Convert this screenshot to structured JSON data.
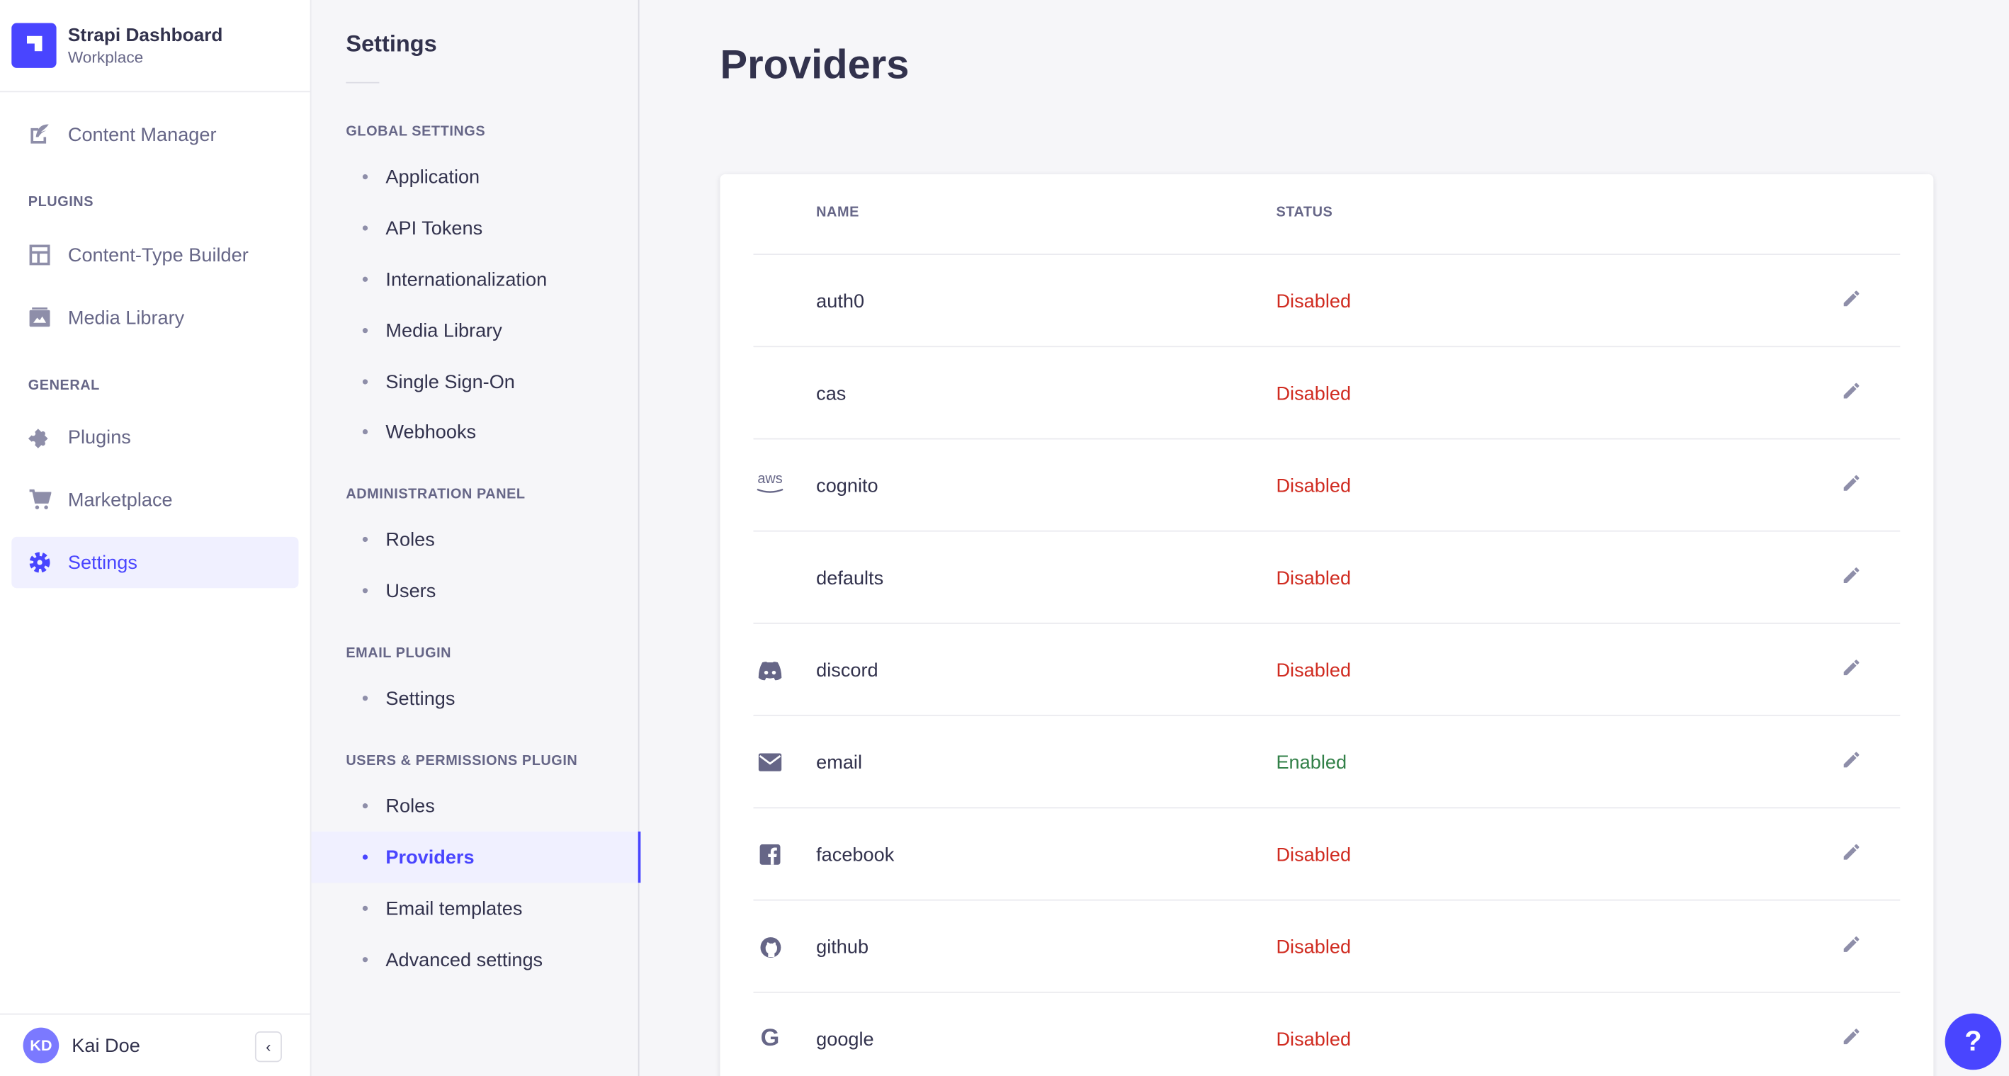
{
  "brand": {
    "title": "Strapi Dashboard",
    "subtitle": "Workplace"
  },
  "nav": {
    "content_manager": "Content Manager",
    "plugins_heading": "PLUGINS",
    "ctb": "Content-Type Builder",
    "media": "Media Library",
    "general_heading": "GENERAL",
    "plugins": "Plugins",
    "marketplace": "Marketplace",
    "settings": "Settings"
  },
  "user": {
    "initials": "KD",
    "name": "Kai Doe"
  },
  "settings_nav": {
    "title": "Settings",
    "sections": [
      {
        "heading": "GLOBAL SETTINGS",
        "items": [
          "Application",
          "API Tokens",
          "Internationalization",
          "Media Library",
          "Single Sign-On",
          "Webhooks"
        ]
      },
      {
        "heading": "ADMINISTRATION PANEL",
        "items": [
          "Roles",
          "Users"
        ]
      },
      {
        "heading": "EMAIL PLUGIN",
        "items": [
          "Settings"
        ]
      },
      {
        "heading": "USERS & PERMISSIONS PLUGIN",
        "items": [
          "Roles",
          "Providers",
          "Email templates",
          "Advanced settings"
        ]
      }
    ],
    "active": "Providers"
  },
  "page": {
    "title": "Providers"
  },
  "table": {
    "headers": {
      "name": "NAME",
      "status": "STATUS"
    },
    "rows": [
      {
        "icon": "",
        "name": "auth0",
        "status": "Disabled"
      },
      {
        "icon": "aws-icon",
        "name": "cas",
        "status": "Disabled"
      },
      {
        "icon": "aws-icon",
        "name": "cognito",
        "status": "Disabled"
      },
      {
        "icon": "",
        "name": "defaults",
        "status": "Disabled"
      },
      {
        "icon": "discord-icon",
        "name": "discord",
        "status": "Disabled"
      },
      {
        "icon": "mail-icon",
        "name": "email",
        "status": "Enabled"
      },
      {
        "icon": "facebook-icon",
        "name": "facebook",
        "status": "Disabled"
      },
      {
        "icon": "github-icon",
        "name": "github",
        "status": "Disabled"
      },
      {
        "icon": "google-icon",
        "name": "google",
        "status": "Disabled"
      }
    ],
    "aws_text": "aws"
  },
  "help": {
    "label": "?"
  },
  "colors": {
    "accent": "#4945ff",
    "enabled": "#328048",
    "disabled": "#d02b20"
  }
}
